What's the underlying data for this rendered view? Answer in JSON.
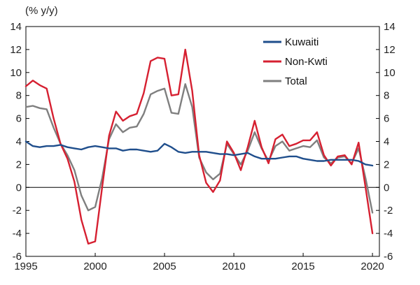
{
  "chart_data": {
    "type": "line",
    "unit_label": "(% y/y)",
    "x_ticks": [
      "1995",
      "2000",
      "2005",
      "2010",
      "2015",
      "2020"
    ],
    "y_ticks": [
      "14",
      "12",
      "10",
      "8",
      "6",
      "4",
      "2",
      "0",
      "-2",
      "-4",
      "-6"
    ],
    "xlim": [
      1995,
      2020.5
    ],
    "ylim": [
      -6,
      14
    ],
    "legend_position": "top-right",
    "zero_line": true,
    "series": [
      {
        "name": "Kuwaiti",
        "color": "#1f4e8c",
        "x": [
          1995,
          1995.5,
          1996,
          1996.5,
          1997,
          1997.5,
          1998,
          1998.5,
          1999,
          1999.5,
          2000,
          2000.5,
          2001,
          2001.5,
          2002,
          2002.5,
          2003,
          2003.5,
          2004,
          2004.5,
          2005,
          2005.5,
          2006,
          2006.5,
          2007,
          2007.5,
          2008,
          2008.5,
          2009,
          2009.5,
          2010,
          2010.5,
          2011,
          2011.5,
          2012,
          2012.5,
          2013,
          2013.5,
          2014,
          2014.5,
          2015,
          2015.5,
          2016,
          2016.5,
          2017,
          2017.5,
          2018,
          2018.5,
          2019,
          2019.5,
          2020
        ],
        "y": [
          4.0,
          3.6,
          3.5,
          3.6,
          3.6,
          3.7,
          3.5,
          3.4,
          3.3,
          3.5,
          3.6,
          3.5,
          3.4,
          3.4,
          3.2,
          3.3,
          3.3,
          3.2,
          3.1,
          3.2,
          3.8,
          3.5,
          3.1,
          3.0,
          3.1,
          3.1,
          3.1,
          3.0,
          2.9,
          2.9,
          2.8,
          2.9,
          3.0,
          2.7,
          2.5,
          2.5,
          2.5,
          2.6,
          2.7,
          2.7,
          2.5,
          2.4,
          2.3,
          2.3,
          2.4,
          2.4,
          2.4,
          2.4,
          2.3,
          2.0,
          1.9
        ]
      },
      {
        "name": "Non-Kwti",
        "color": "#d62031",
        "x": [
          1995,
          1995.5,
          1996,
          1996.5,
          1997,
          1997.5,
          1998,
          1998.5,
          1999,
          1999.5,
          2000,
          2000.5,
          2001,
          2001.5,
          2002,
          2002.5,
          2003,
          2003.5,
          2004,
          2004.5,
          2005,
          2005.5,
          2006,
          2006.5,
          2007,
          2007.5,
          2008,
          2008.5,
          2009,
          2009.5,
          2010,
          2010.5,
          2011,
          2011.5,
          2012,
          2012.5,
          2013,
          2013.5,
          2014,
          2014.5,
          2015,
          2015.5,
          2016,
          2016.5,
          2017,
          2017.5,
          2018,
          2018.5,
          2019,
          2019.5,
          2020
        ],
        "y": [
          8.8,
          9.3,
          8.9,
          8.6,
          6.0,
          3.8,
          2.5,
          0.5,
          -2.8,
          -4.9,
          -4.7,
          0.0,
          4.5,
          6.6,
          5.8,
          6.2,
          6.4,
          8.2,
          11.0,
          11.3,
          11.2,
          8.0,
          8.1,
          12.0,
          8.4,
          2.8,
          0.4,
          -0.4,
          0.6,
          4.0,
          3.0,
          1.5,
          3.5,
          5.8,
          3.5,
          2.1,
          4.2,
          4.6,
          3.6,
          3.8,
          4.1,
          4.1,
          4.8,
          2.8,
          1.9,
          2.7,
          2.8,
          2.0,
          3.9,
          0.0,
          -4.0
        ]
      },
      {
        "name": "Total",
        "color": "#7f7f7f",
        "x": [
          1995,
          1995.5,
          1996,
          1996.5,
          1997,
          1997.5,
          1998,
          1998.5,
          1999,
          1999.5,
          2000,
          2000.5,
          2001,
          2001.5,
          2002,
          2002.5,
          2003,
          2003.5,
          2004,
          2004.5,
          2005,
          2005.5,
          2006,
          2006.5,
          2007,
          2007.5,
          2008,
          2008.5,
          2009,
          2009.5,
          2010,
          2010.5,
          2011,
          2011.5,
          2012,
          2012.5,
          2013,
          2013.5,
          2014,
          2014.5,
          2015,
          2015.5,
          2016,
          2016.5,
          2017,
          2017.5,
          2018,
          2018.5,
          2019,
          2019.5,
          2020
        ],
        "y": [
          7.0,
          7.1,
          6.9,
          6.8,
          5.2,
          3.8,
          2.8,
          1.5,
          -0.7,
          -2.0,
          -1.7,
          0.8,
          4.2,
          5.5,
          4.8,
          5.2,
          5.3,
          6.4,
          8.1,
          8.4,
          8.6,
          6.5,
          6.4,
          9.0,
          7.0,
          2.6,
          1.3,
          0.7,
          1.2,
          3.8,
          2.9,
          2.0,
          3.2,
          4.8,
          3.4,
          2.3,
          3.6,
          4.0,
          3.2,
          3.4,
          3.6,
          3.5,
          4.1,
          2.6,
          2.1,
          2.6,
          2.7,
          2.1,
          3.4,
          0.8,
          -2.2
        ]
      }
    ]
  }
}
